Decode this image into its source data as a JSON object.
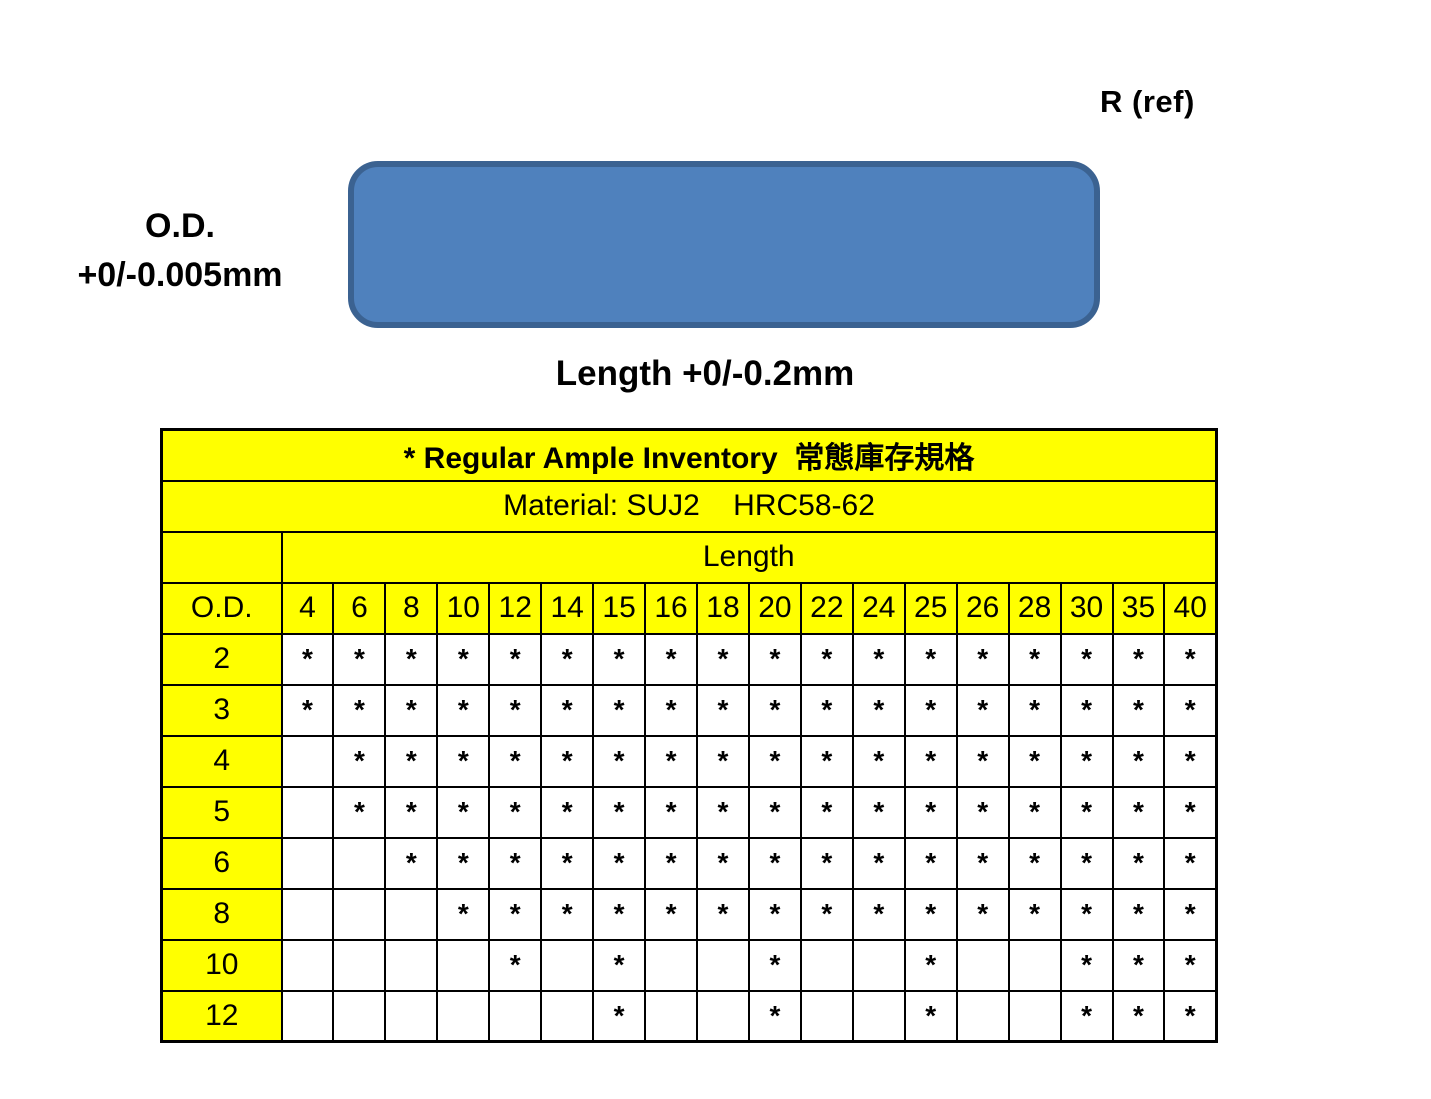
{
  "diagram": {
    "r_ref_label": "R (ref)",
    "od_label_line1": "O.D.",
    "od_label_line2": "+0/-0.005mm",
    "length_label": "Length +0/-0.2mm",
    "pin_fill_color": "#4f81bd",
    "pin_border_color": "#3b6291"
  },
  "table": {
    "title": "* Regular Ample Inventory  常態庫存規格",
    "material": "Material: SUJ2    HRC58-62",
    "length_header": "Length",
    "od_header": "O.D.",
    "mark_symbol": "*",
    "header_bg_color": "#ffff00",
    "cell_bg_color": "#ffffff",
    "length_columns": [
      "4",
      "6",
      "8",
      "10",
      "12",
      "14",
      "15",
      "16",
      "18",
      "20",
      "22",
      "24",
      "25",
      "26",
      "28",
      "30",
      "35",
      "40"
    ],
    "rows": [
      {
        "od": "2",
        "marks": [
          "*",
          "*",
          "*",
          "*",
          "*",
          "*",
          "*",
          "*",
          "*",
          "*",
          "*",
          "*",
          "*",
          "*",
          "*",
          "*",
          "*",
          "*"
        ]
      },
      {
        "od": "3",
        "marks": [
          "*",
          "*",
          "*",
          "*",
          "*",
          "*",
          "*",
          "*",
          "*",
          "*",
          "*",
          "*",
          "*",
          "*",
          "*",
          "*",
          "*",
          "*"
        ]
      },
      {
        "od": "4",
        "marks": [
          "",
          "*",
          "*",
          "*",
          "*",
          "*",
          "*",
          "*",
          "*",
          "*",
          "*",
          "*",
          "*",
          "*",
          "*",
          "*",
          "*",
          "*"
        ]
      },
      {
        "od": "5",
        "marks": [
          "",
          "*",
          "*",
          "*",
          "*",
          "*",
          "*",
          "*",
          "*",
          "*",
          "*",
          "*",
          "*",
          "*",
          "*",
          "*",
          "*",
          "*"
        ]
      },
      {
        "od": "6",
        "marks": [
          "",
          "",
          "*",
          "*",
          "*",
          "*",
          "*",
          "*",
          "*",
          "*",
          "*",
          "*",
          "*",
          "*",
          "*",
          "*",
          "*",
          "*"
        ]
      },
      {
        "od": "8",
        "marks": [
          "",
          "",
          "",
          "*",
          "*",
          "*",
          "*",
          "*",
          "*",
          "*",
          "*",
          "*",
          "*",
          "*",
          "*",
          "*",
          "*",
          "*"
        ]
      },
      {
        "od": "10",
        "marks": [
          "",
          "",
          "",
          "",
          "*",
          "",
          "*",
          "",
          "",
          "*",
          "",
          "",
          "*",
          "",
          "",
          "*",
          "*",
          "*"
        ]
      },
      {
        "od": "12",
        "marks": [
          "",
          "",
          "",
          "",
          "",
          "",
          "*",
          "",
          "",
          "*",
          "",
          "",
          "*",
          "",
          "",
          "*",
          "*",
          "*"
        ]
      }
    ]
  }
}
